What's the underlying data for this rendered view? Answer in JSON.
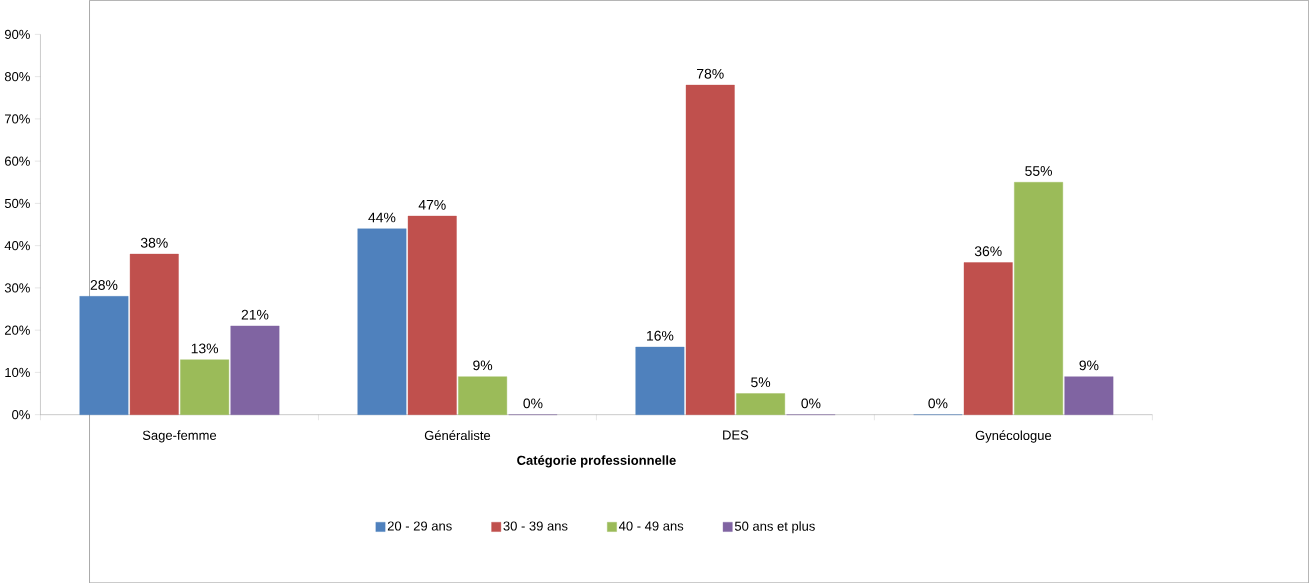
{
  "chart_data": {
    "type": "bar",
    "xlabel": "Catégorie professionnelle",
    "categories": [
      "Sage-femme",
      "Généraliste",
      "DES",
      "Gynécologue"
    ],
    "series": [
      {
        "name": "20 - 29 ans",
        "color": "#4f81bd",
        "values": [
          28,
          44,
          16,
          0
        ],
        "value_labels": [
          "28%",
          "44%",
          "16%",
          "0%"
        ]
      },
      {
        "name": "30 - 39 ans",
        "color": "#c0504d",
        "values": [
          38,
          47,
          78,
          36
        ],
        "value_labels": [
          "38%",
          "47%",
          "78%",
          "36%"
        ]
      },
      {
        "name": "40 - 49 ans",
        "color": "#9bbb59",
        "values": [
          13,
          9,
          5,
          55
        ],
        "value_labels": [
          "13%",
          "9%",
          "5%",
          "55%"
        ]
      },
      {
        "name": "50 ans et plus",
        "color": "#8064a2",
        "values": [
          21,
          0,
          0,
          9
        ],
        "value_labels": [
          "21%",
          "0%",
          "0%",
          "9%"
        ]
      }
    ],
    "ylim": [
      0,
      90
    ],
    "yticks": [
      {
        "value": 0,
        "label": "0%"
      },
      {
        "value": 10,
        "label": "10%"
      },
      {
        "value": 20,
        "label": "20%"
      },
      {
        "value": 30,
        "label": "30%"
      },
      {
        "value": 40,
        "label": "40%"
      },
      {
        "value": 50,
        "label": "50%"
      },
      {
        "value": 60,
        "label": "60%"
      },
      {
        "value": 70,
        "label": "70%"
      },
      {
        "value": 80,
        "label": "80%"
      },
      {
        "value": 90,
        "label": "90%"
      }
    ],
    "legend": "bottom"
  }
}
